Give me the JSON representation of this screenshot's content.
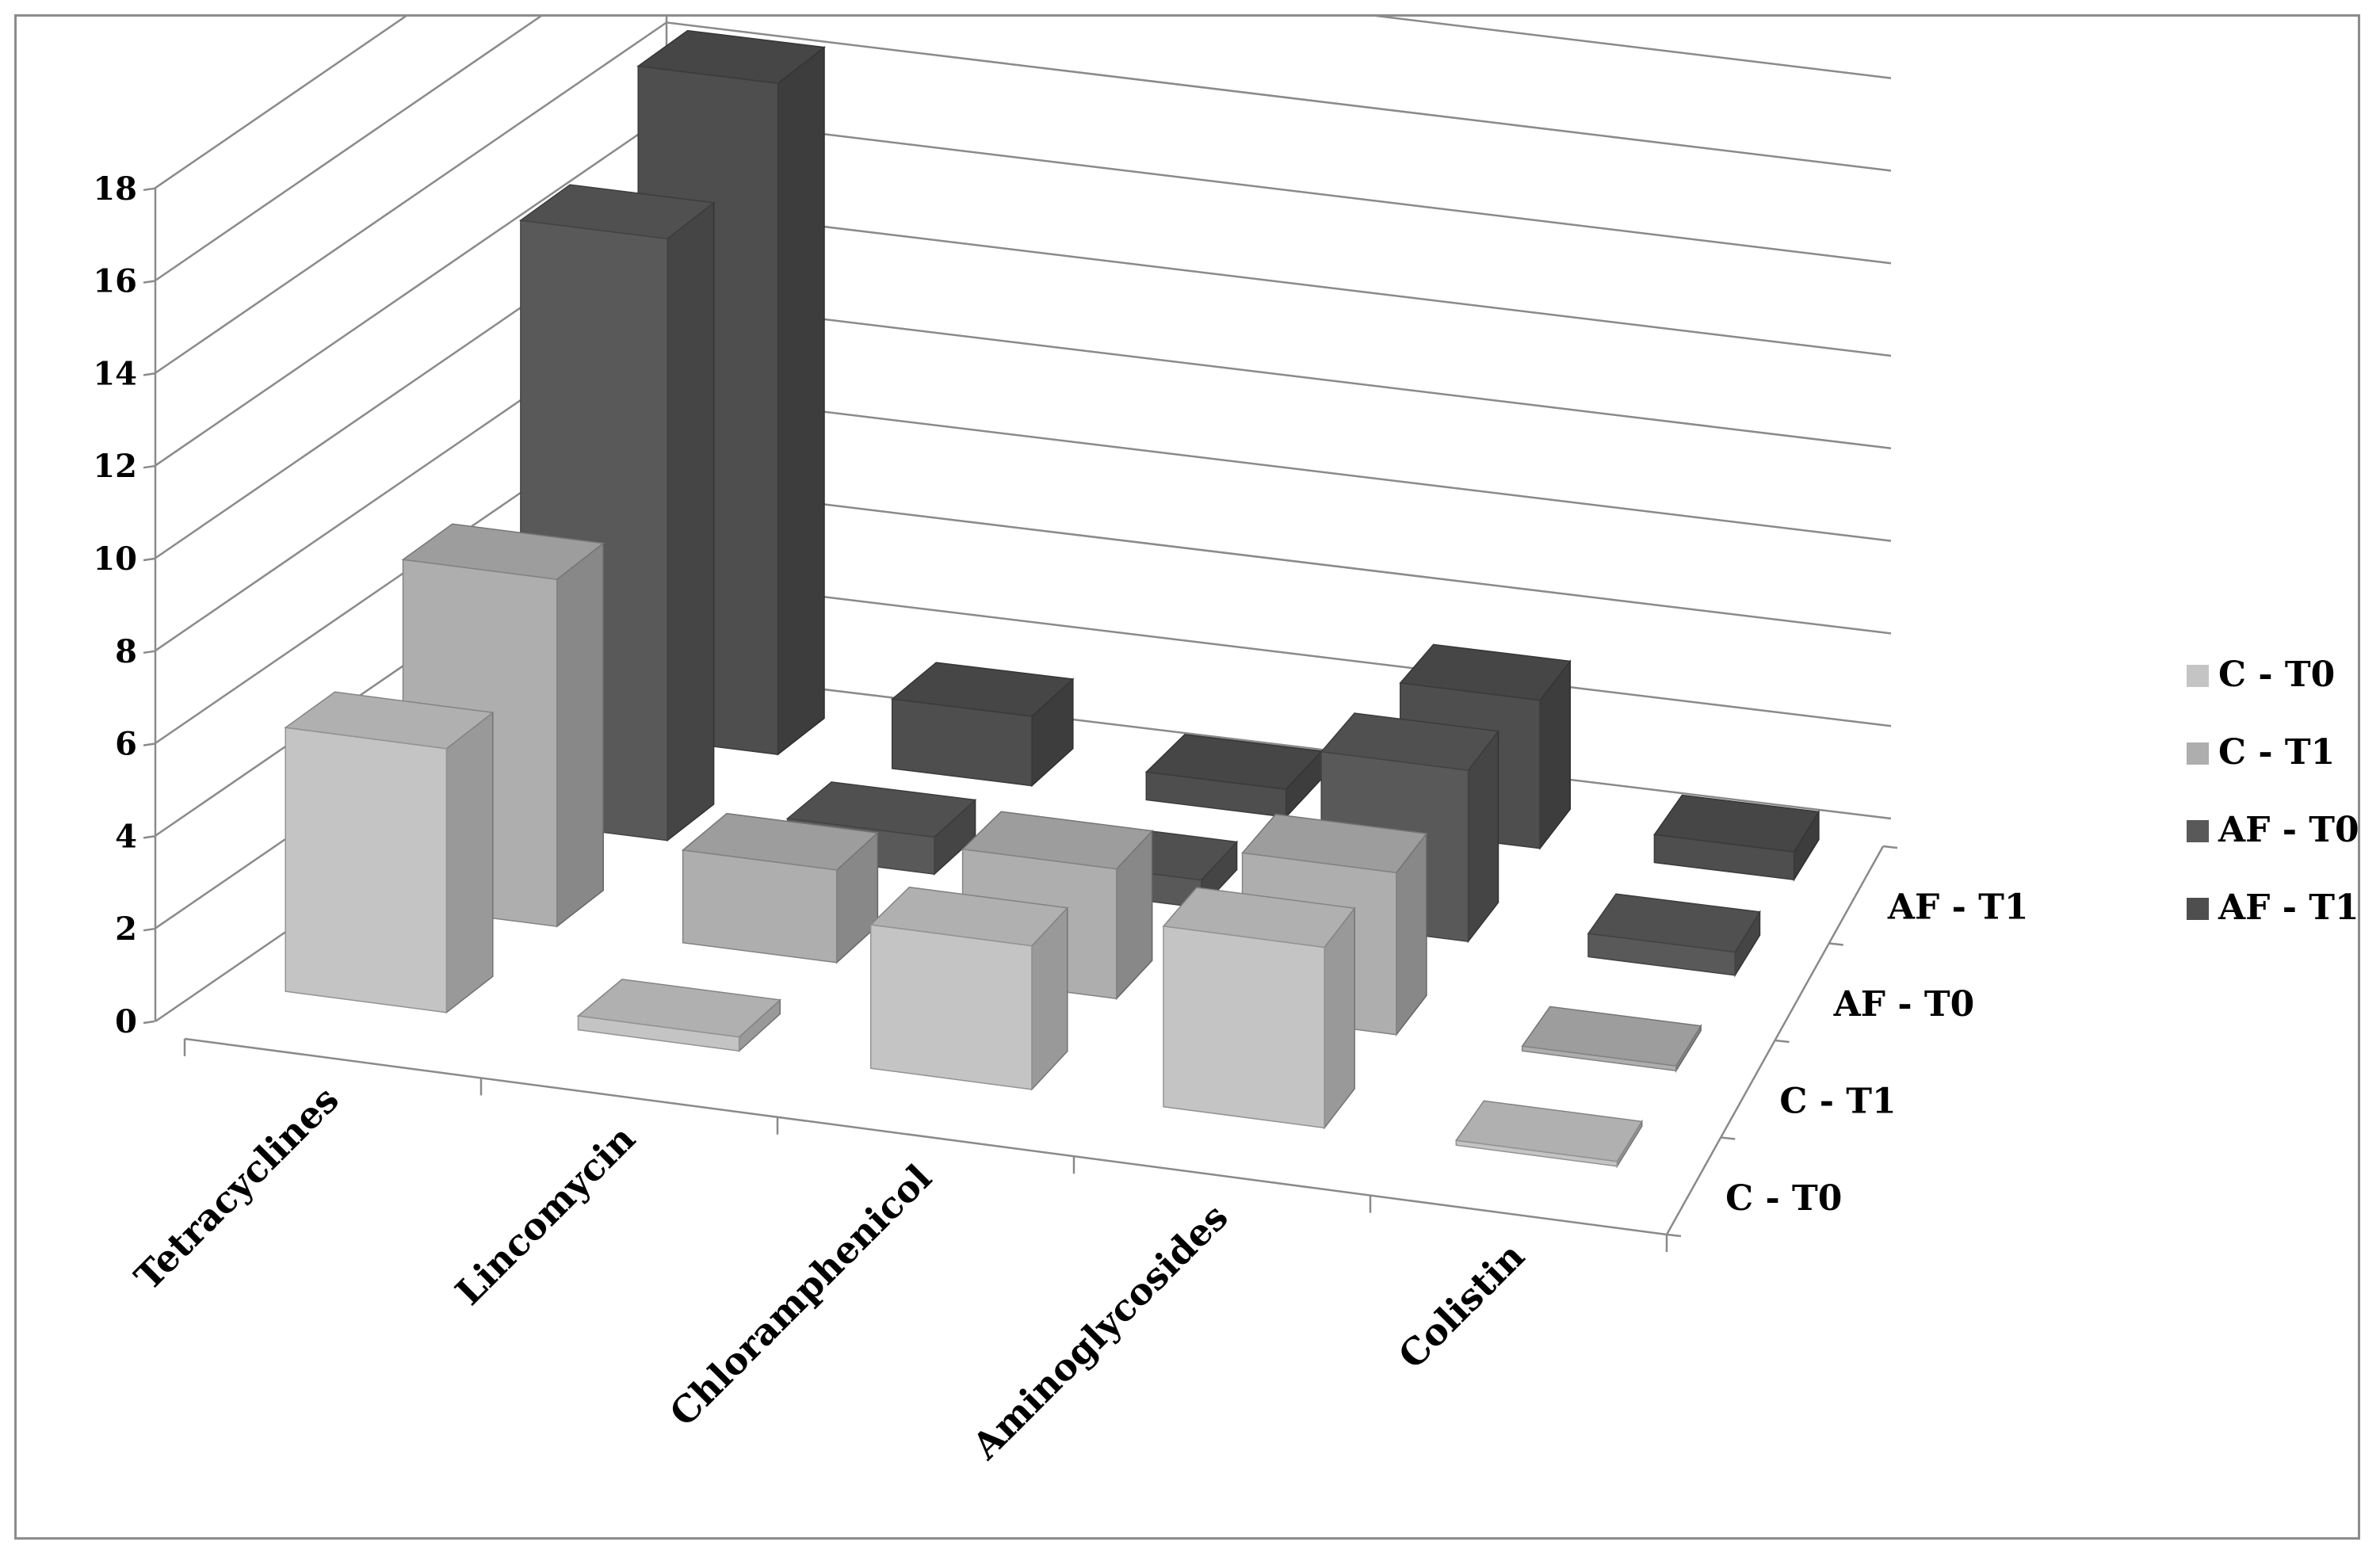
{
  "chart_data": {
    "type": "bar",
    "subtype": "3d-column",
    "title": "",
    "xlabel": "",
    "ylabel": "",
    "ylim": [
      0,
      18
    ],
    "yticks": [
      0,
      2,
      4,
      6,
      8,
      10,
      12,
      14,
      16,
      18
    ],
    "grid": true,
    "legend_position": "right",
    "categories": [
      "Tetracyclines",
      "Lincomycin",
      "Chloramphenicol",
      "Aminoglycosides",
      "Colistin"
    ],
    "series": [
      {
        "name": "C - T0",
        "color": "#c4c4c4",
        "values": [
          5.7,
          0.3,
          3.1,
          3.9,
          0.0
        ]
      },
      {
        "name": "C - T1",
        "color": "#aeaeae",
        "values": [
          7.5,
          2.0,
          2.8,
          3.5,
          0.0
        ]
      },
      {
        "name": "AF - T0",
        "color": "#595959",
        "values": [
          13.0,
          0.8,
          0.6,
          3.7,
          0.5
        ]
      },
      {
        "name": "AF - T1",
        "color": "#4e4e4e",
        "values": [
          14.5,
          1.5,
          0.6,
          3.2,
          0.6
        ]
      }
    ]
  }
}
